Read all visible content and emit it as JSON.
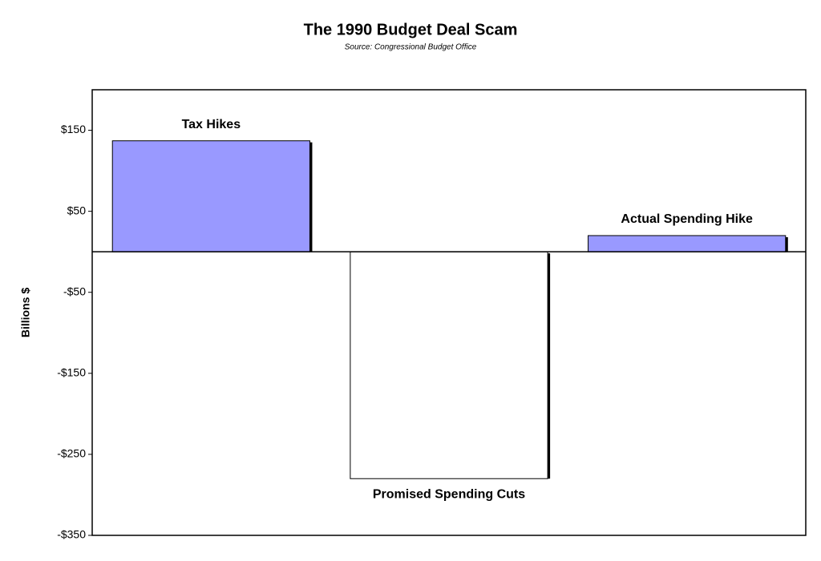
{
  "chart_data": {
    "type": "bar",
    "title": "The 1990 Budget Deal Scam",
    "subtitle": "Source: Congressional Budget Office",
    "y_label": "Billions $",
    "categories": [
      "Tax Hikes",
      "Promised Spending Cuts",
      "Actual Spending Hike"
    ],
    "values": [
      137,
      -280,
      20
    ],
    "colors": [
      "#9999ff",
      "#ffffff",
      "#9999ff"
    ],
    "ylim": [
      -350,
      200
    ],
    "yticks": [
      {
        "value": 150,
        "label": "$150"
      },
      {
        "value": 50,
        "label": "$50"
      },
      {
        "value": -50,
        "label": "-$50"
      },
      {
        "value": -150,
        "label": "-$150"
      },
      {
        "value": -250,
        "label": "-$250"
      },
      {
        "value": -350,
        "label": "-$350"
      }
    ],
    "grid": false
  }
}
